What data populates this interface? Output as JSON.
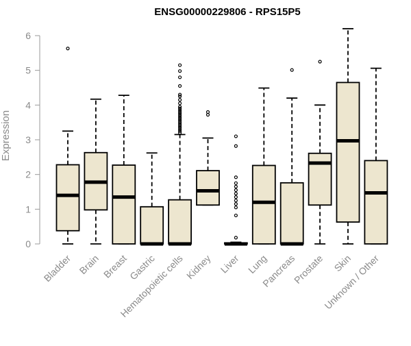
{
  "chart_data": {
    "type": "box",
    "title": "ENSG00000229806 - RPS15P5",
    "xlabel": "",
    "ylabel": "Expression",
    "ylim": [
      0,
      6.2
    ],
    "yticks": [
      0,
      1,
      2,
      3,
      4,
      5,
      6
    ],
    "grid": false,
    "legend": "none",
    "colors": {
      "box_fill": "#ede6cf",
      "box_stroke": "#000000",
      "median": "#000000",
      "axis": "#9a9a9a",
      "tick_label": "#8a8a8a",
      "title": "#000000"
    },
    "categories": [
      "Bladder",
      "Brain",
      "Breast",
      "Gastric",
      "Hematopoietic cells",
      "Kidney",
      "Liver",
      "Lung",
      "Pancreas",
      "Prostate",
      "Skin",
      "Unknown / Other"
    ],
    "boxes": [
      {
        "category": "Bladder",
        "whisker_low": 0,
        "q1": 0.38,
        "median": 1.4,
        "q3": 2.28,
        "whisker_high": 3.25,
        "outliers": [
          5.63
        ]
      },
      {
        "category": "Brain",
        "whisker_low": 0,
        "q1": 0.98,
        "median": 1.78,
        "q3": 2.63,
        "whisker_high": 4.17,
        "outliers": []
      },
      {
        "category": "Breast",
        "whisker_low": 0,
        "q1": 0,
        "median": 1.35,
        "q3": 2.27,
        "whisker_high": 4.28,
        "outliers": []
      },
      {
        "category": "Gastric",
        "whisker_low": 0,
        "q1": 0,
        "median": 0,
        "q3": 1.07,
        "whisker_high": 2.62,
        "outliers": []
      },
      {
        "category": "Hematopoietic cells",
        "whisker_low": 0,
        "q1": 0,
        "median": 0,
        "q3": 1.27,
        "whisker_high": 3.15,
        "outliers": [
          3.2,
          3.25,
          3.3,
          3.35,
          3.4,
          3.45,
          3.5,
          3.55,
          3.6,
          3.65,
          3.7,
          3.75,
          3.8,
          3.85,
          3.9,
          3.95,
          4.05,
          4.15,
          4.25,
          4.3,
          4.55,
          4.8,
          4.98,
          5.15
        ]
      },
      {
        "category": "Kidney",
        "whisker_low": 1.12,
        "q1": 1.12,
        "median": 1.53,
        "q3": 2.11,
        "whisker_high": 3.05,
        "outliers": [
          3.72,
          3.8
        ]
      },
      {
        "category": "Liver",
        "whisker_low": 0,
        "q1": 0,
        "median": 0,
        "q3": 0.03,
        "whisker_high": 0.05,
        "outliers": [
          0.18,
          0.82,
          1.05,
          1.15,
          1.25,
          1.35,
          1.45,
          1.55,
          1.65,
          1.75,
          1.92,
          2.82,
          3.1
        ]
      },
      {
        "category": "Lung",
        "whisker_low": 0,
        "q1": 0,
        "median": 1.2,
        "q3": 2.26,
        "whisker_high": 4.49,
        "outliers": []
      },
      {
        "category": "Pancreas",
        "whisker_low": 0,
        "q1": 0,
        "median": 0,
        "q3": 1.76,
        "whisker_high": 4.2,
        "outliers": [
          5.01
        ]
      },
      {
        "category": "Prostate",
        "whisker_low": 0,
        "q1": 1.12,
        "median": 2.33,
        "q3": 2.61,
        "whisker_high": 4.0,
        "outliers": [
          5.25
        ]
      },
      {
        "category": "Skin",
        "whisker_low": 0,
        "q1": 0.63,
        "median": 2.97,
        "q3": 4.65,
        "whisker_high": 6.2,
        "outliers": []
      },
      {
        "category": "Unknown / Other",
        "whisker_low": 0,
        "q1": 0,
        "median": 1.47,
        "q3": 2.4,
        "whisker_high": 5.06,
        "outliers": []
      }
    ]
  }
}
